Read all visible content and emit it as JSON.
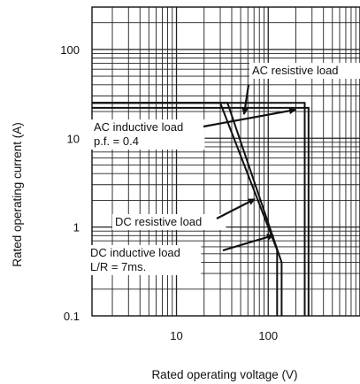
{
  "chart_data": {
    "type": "line",
    "xlabel": "Rated operating voltage (V)",
    "ylabel": "Rated operating current (A)",
    "x_scale": "log",
    "y_scale": "log",
    "xlim": [
      1.2,
      1000
    ],
    "ylim": [
      0.1,
      300
    ],
    "x_ticks": [
      "10",
      "100"
    ],
    "y_ticks": [
      "0.1",
      "1",
      "10",
      "100"
    ],
    "grid": true,
    "series": [
      {
        "name": "AC resistive load",
        "x": [
          1.2,
          250,
          250
        ],
        "y": [
          25,
          25,
          0.1
        ]
      },
      {
        "name": "AC inductive load p.f. = 0.4",
        "x": [
          1.2,
          275,
          275
        ],
        "y": [
          22,
          22,
          0.1
        ]
      },
      {
        "name": "DC resistive load",
        "x": [
          1.2,
          30,
          125,
          125
        ],
        "y": [
          25,
          25,
          0.55,
          0.1
        ]
      },
      {
        "name": "DC inductive load L/R = 7ms.",
        "x": [
          1.2,
          36,
          140,
          140
        ],
        "y": [
          25,
          25,
          0.4,
          0.1
        ]
      }
    ],
    "annotations": [
      {
        "lines": [
          "AC resistive load"
        ],
        "target_series": 0
      },
      {
        "lines": [
          "AC inductive load",
          "p.f. = 0.4"
        ],
        "target_series": 1
      },
      {
        "lines": [
          "DC resistive load"
        ],
        "target_series": 2
      },
      {
        "lines": [
          "DC inductive load",
          "L/R = 7ms."
        ],
        "target_series": 3
      }
    ]
  }
}
